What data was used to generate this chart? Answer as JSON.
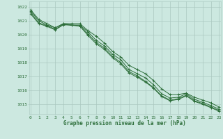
{
  "bg_color": "#cce8e0",
  "grid_color": "#aac8c0",
  "line_color": "#2d6e3a",
  "xlabel": "Graphe pression niveau de la mer (hPa)",
  "xlim": [
    -0.2,
    23.2
  ],
  "ylim": [
    1014.3,
    1022.4
  ],
  "yticks": [
    1015,
    1016,
    1017,
    1018,
    1019,
    1020,
    1021,
    1022
  ],
  "xticks": [
    0,
    1,
    2,
    3,
    4,
    5,
    6,
    7,
    8,
    9,
    10,
    11,
    12,
    13,
    14,
    15,
    16,
    17,
    18,
    19,
    20,
    21,
    22,
    23
  ],
  "series": [
    [
      1021.8,
      1021.1,
      1020.8,
      1020.5,
      1020.8,
      1020.8,
      1020.8,
      1020.3,
      1019.9,
      1019.4,
      1018.8,
      1018.4,
      1017.8,
      1017.5,
      1017.2,
      1016.7,
      1016.1,
      1015.7,
      1015.7,
      1015.8,
      1015.5,
      1015.3,
      1015.1,
      1014.8
    ],
    [
      1021.7,
      1021.0,
      1020.7,
      1020.5,
      1020.8,
      1020.7,
      1020.7,
      1020.2,
      1019.6,
      1019.2,
      1018.6,
      1018.2,
      1017.5,
      1017.2,
      1016.9,
      1016.4,
      1015.75,
      1015.45,
      1015.5,
      1015.75,
      1015.35,
      1015.15,
      1014.9,
      1014.65
    ],
    [
      1021.6,
      1020.85,
      1020.65,
      1020.4,
      1020.75,
      1020.7,
      1020.65,
      1020.05,
      1019.45,
      1019.05,
      1018.45,
      1018.0,
      1017.35,
      1017.05,
      1016.65,
      1016.2,
      1015.6,
      1015.3,
      1015.4,
      1015.65,
      1015.25,
      1015.05,
      1014.8,
      1014.55
    ],
    [
      1021.5,
      1020.8,
      1020.6,
      1020.35,
      1020.72,
      1020.68,
      1020.62,
      1019.95,
      1019.35,
      1018.95,
      1018.35,
      1017.9,
      1017.25,
      1016.95,
      1016.6,
      1016.15,
      1015.55,
      1015.25,
      1015.35,
      1015.6,
      1015.2,
      1015.0,
      1014.75,
      1014.5
    ]
  ]
}
